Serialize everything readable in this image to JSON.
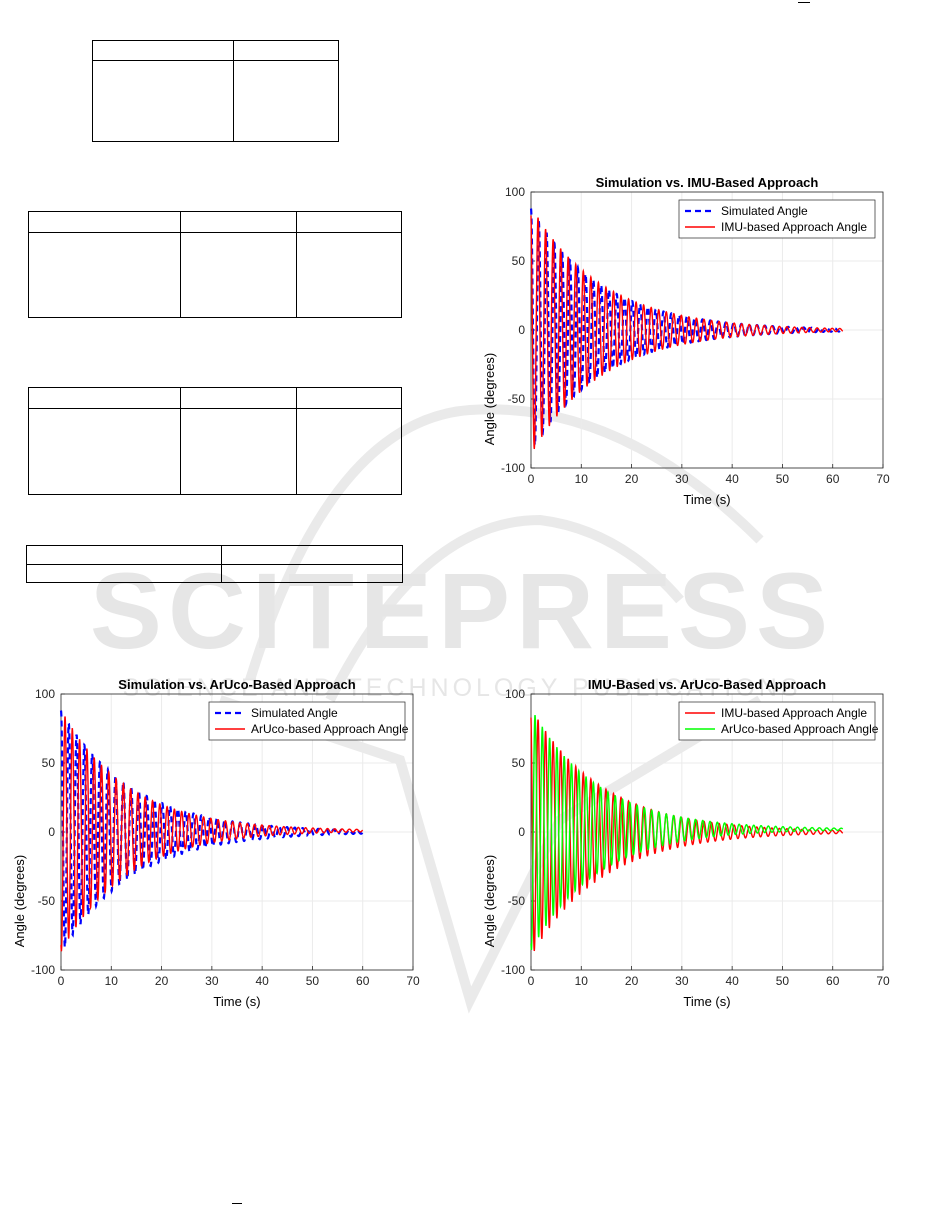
{
  "watermark": {
    "big_text": "SCITEPRESS",
    "sub_text": "SCIENCE AND TECHNOLOGY PUBLICATIONS",
    "color": "#e6e6e6"
  },
  "colors": {
    "simulated": "#0000ff",
    "imu": "#ff0000",
    "aruco_red": "#ff0000",
    "aruco_green": "#00ff00",
    "grid": "#ebebeb"
  },
  "chart_data": [
    {
      "type": "line",
      "title": "Simulation vs. IMU-Based Approach",
      "xlabel": "Time (s)",
      "ylabel": "Angle (degrees)",
      "xlim": [
        0,
        70
      ],
      "ylim": [
        -100,
        100
      ],
      "xticks": [
        "0",
        "10",
        "20",
        "30",
        "40",
        "50",
        "60",
        "70"
      ],
      "yticks": [
        "100",
        "50",
        "0",
        "-50",
        "-100"
      ],
      "grid": true,
      "legend_position": "top-right",
      "series": [
        {
          "name": "Simulated Angle",
          "style": "dashed",
          "color": "#0000ff",
          "amplitude": 88,
          "decay_tau": 14,
          "period": 1.55,
          "phase": 0,
          "t_end": 62,
          "offset": 0
        },
        {
          "name": "IMU-based Approach Angle",
          "style": "solid",
          "color": "#ff0000",
          "amplitude": 90,
          "decay_tau": 14,
          "period": 1.5,
          "phase": 0.4,
          "t_end": 62,
          "offset": 0
        }
      ]
    },
    {
      "type": "line",
      "title": "Simulation vs. ArUco-Based Approach",
      "xlabel": "Time (s)",
      "ylabel": "Angle (degrees)",
      "xlim": [
        0,
        70
      ],
      "ylim": [
        -100,
        100
      ],
      "xticks": [
        "0",
        "10",
        "20",
        "30",
        "40",
        "50",
        "60",
        "70"
      ],
      "yticks": [
        "100",
        "50",
        "0",
        "-50",
        "-100"
      ],
      "grid": true,
      "legend_position": "top-right",
      "series": [
        {
          "name": "Simulated Angle",
          "style": "dashed",
          "color": "#0000ff",
          "amplitude": 88,
          "decay_tau": 14,
          "period": 1.55,
          "phase": 0,
          "t_end": 60,
          "offset": 0
        },
        {
          "name": "ArUco-based Approach Angle",
          "style": "solid",
          "color": "#ff0000",
          "amplitude": 88,
          "decay_tau": 13,
          "period": 1.45,
          "phase": 2.8,
          "t_end": 60,
          "offset": 1
        }
      ]
    },
    {
      "type": "line",
      "title": "IMU-Based vs. ArUco-Based Approach",
      "xlabel": "Time (s)",
      "ylabel": "Angle (degrees)",
      "xlim": [
        0,
        70
      ],
      "ylim": [
        -100,
        100
      ],
      "xticks": [
        "0",
        "10",
        "20",
        "30",
        "40",
        "50",
        "60",
        "70"
      ],
      "yticks": [
        "100",
        "50",
        "0",
        "-50",
        "-100"
      ],
      "grid": true,
      "legend_position": "top-right",
      "series": [
        {
          "name": "IMU-based Approach Angle",
          "style": "solid",
          "color": "#ff0000",
          "amplitude": 90,
          "decay_tau": 14,
          "period": 1.5,
          "phase": 0.4,
          "t_end": 62,
          "offset": 0
        },
        {
          "name": "ArUco-based Approach Angle",
          "style": "solid",
          "color": "#00ff00",
          "amplitude": 88,
          "decay_tau": 13,
          "period": 1.45,
          "phase": 2.8,
          "t_end": 62,
          "offset": 2
        }
      ]
    }
  ]
}
